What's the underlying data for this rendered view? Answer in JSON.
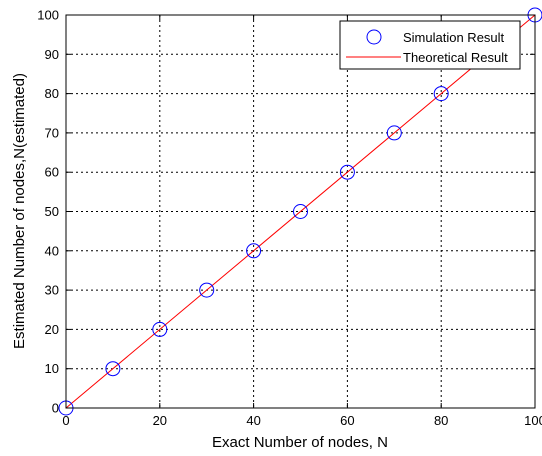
{
  "chart_data": {
    "type": "scatter",
    "title": "",
    "xlabel": "Exact Number of nodes, N",
    "ylabel": "Estimated Number of nodes,N(estimated)",
    "xlim": [
      0,
      100
    ],
    "ylim": [
      0,
      100
    ],
    "xticks": [
      0,
      20,
      40,
      60,
      80,
      100
    ],
    "yticks": [
      0,
      10,
      20,
      30,
      40,
      50,
      60,
      70,
      80,
      90,
      100
    ],
    "grid": true,
    "legend_position": "top-right",
    "series": [
      {
        "name": "Simulation Result",
        "kind": "markers",
        "marker": "circle",
        "color": "#0000ff",
        "x": [
          0,
          10,
          20,
          30,
          40,
          50,
          60,
          70,
          80,
          100
        ],
        "y": [
          0,
          10,
          20,
          30,
          40,
          50,
          60,
          70,
          80,
          100
        ]
      },
      {
        "name": "Theoretical Result",
        "kind": "line",
        "color": "#ff0000",
        "x": [
          0,
          100
        ],
        "y": [
          0,
          100
        ]
      }
    ]
  }
}
